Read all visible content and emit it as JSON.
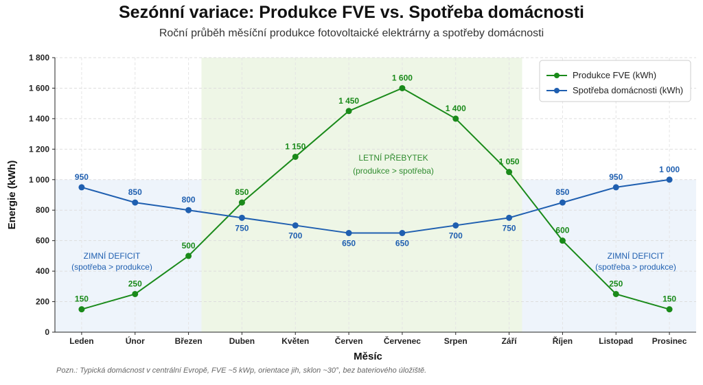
{
  "header": {
    "title": "Sezónní variace: Produkce FVE vs. Spotřeba domácnosti",
    "subtitle": "Roční průběh měsíční produkce fotovoltaické elektrárny a spotřeby domácnosti"
  },
  "footnote": "Pozn.: Typická domácnost v centrální Evropě, FVE ~5 kWp, orientace jih, sklon ~30°, bez bateriového úložiště.",
  "regions": {
    "winter_left": {
      "line1": "ZIMNÍ DEFICIT",
      "line2": "(spotřeba > produkce)"
    },
    "summer": {
      "line1": "LETNÍ PŘEBYTEK",
      "line2": "(produkce > spotřeba)"
    },
    "winter_right": {
      "line1": "ZIMNÍ DEFICIT",
      "line2": "(spotřeba > produkce)"
    }
  },
  "colors": {
    "production": "#1a8a1a",
    "consumption": "#1f5fb0",
    "summer_fill": "#eef6e6",
    "winter_fill": "#eef4fb"
  },
  "chart_data": {
    "type": "line",
    "categories": [
      "Leden",
      "Únor",
      "Březen",
      "Duben",
      "Květen",
      "Červen",
      "Červenec",
      "Srpen",
      "Září",
      "Říjen",
      "Listopad",
      "Prosinec"
    ],
    "series": [
      {
        "name": "Produkce FVE (kWh)",
        "values": [
          150,
          250,
          500,
          850,
          1150,
          1450,
          1600,
          1400,
          1050,
          600,
          250,
          150
        ]
      },
      {
        "name": "Spotřeba domácnosti (kWh)",
        "values": [
          950,
          850,
          800,
          750,
          700,
          650,
          650,
          700,
          750,
          850,
          950,
          1000
        ]
      }
    ],
    "data_labels_production": [
      "150",
      "250",
      "500",
      "850",
      "1 150",
      "1 450",
      "1 600",
      "1 400",
      "1 050",
      "600",
      "250",
      "150"
    ],
    "data_labels_consumption": [
      "950",
      "850",
      "800",
      "750",
      "700",
      "650",
      "650",
      "700",
      "750",
      "850",
      "950",
      "1 000"
    ],
    "y_ticks": [
      0,
      200,
      400,
      600,
      800,
      1000,
      1200,
      1400,
      1600,
      1800
    ],
    "y_tick_labels": [
      "0",
      "200",
      "400",
      "600",
      "800",
      "1 000",
      "1 200",
      "1 400",
      "1 600",
      "1 800"
    ],
    "xlabel": "Měsíc",
    "ylabel": "Energie (kWh)",
    "ylim": [
      0,
      1800
    ],
    "grid": true,
    "legend": "top-right"
  }
}
